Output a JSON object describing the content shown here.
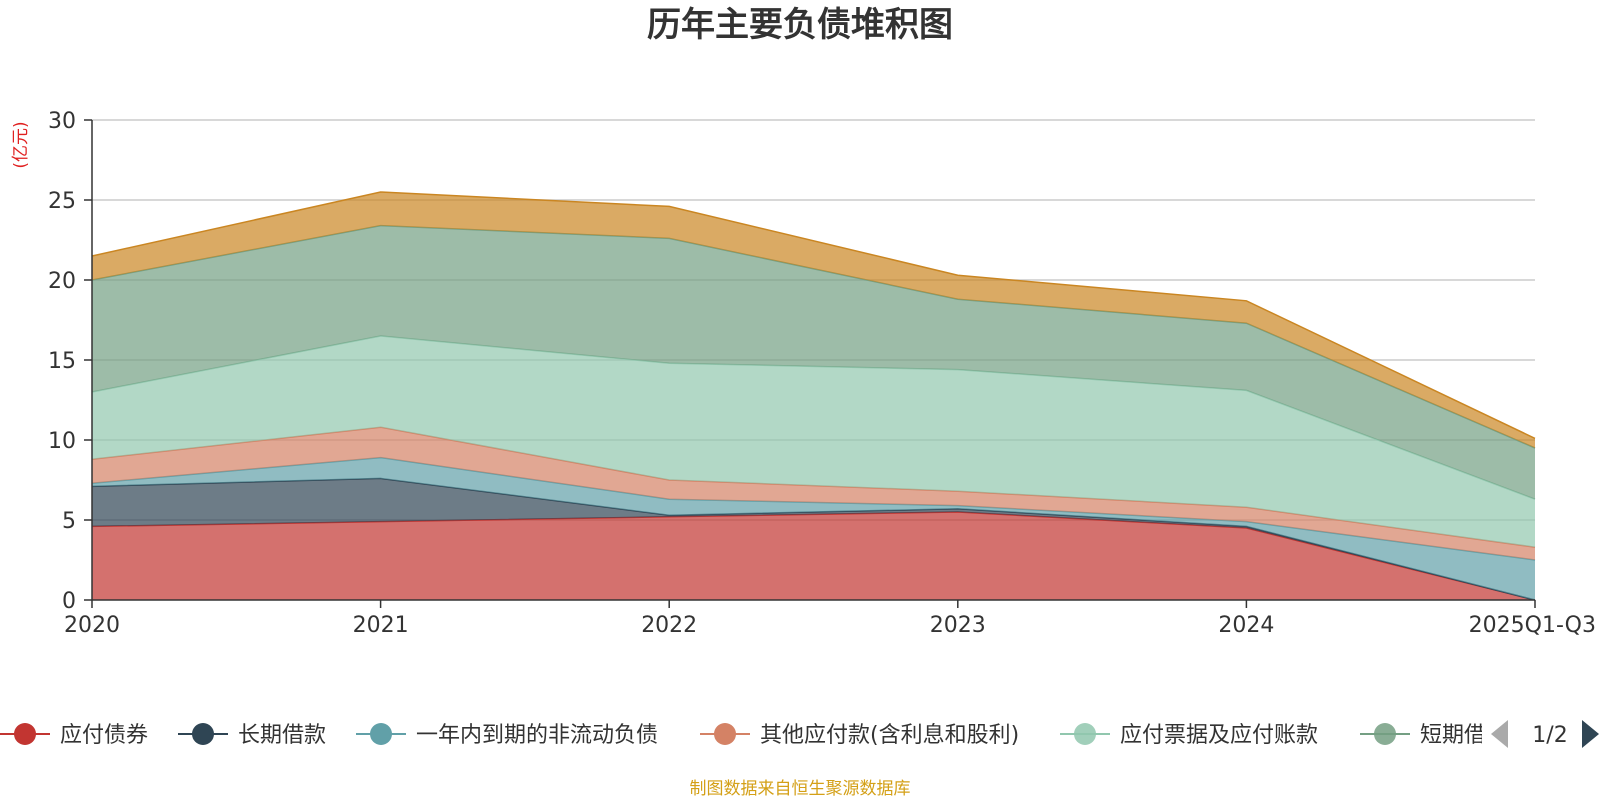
{
  "chart_data": {
    "type": "area",
    "stacked": true,
    "title": "历年主要负债堆积图",
    "ylabel": "(亿元)",
    "xlabel": "",
    "categories": [
      "2020",
      "2021",
      "2022",
      "2023",
      "2024",
      "2025Q1-Q3"
    ],
    "ylim": [
      0,
      30
    ],
    "yticks": [
      0,
      5,
      10,
      15,
      20,
      25,
      30
    ],
    "grid": true,
    "series": [
      {
        "name": "应付债券",
        "color": "#c23531",
        "values": [
          4.6,
          4.9,
          5.2,
          5.5,
          4.5,
          0.0
        ]
      },
      {
        "name": "长期借款",
        "color": "#2f4554",
        "values": [
          2.5,
          2.7,
          0.1,
          0.2,
          0.1,
          0.0
        ]
      },
      {
        "name": "一年内到期的非流动负债",
        "color": "#61a0a8",
        "values": [
          0.2,
          1.3,
          1.0,
          0.2,
          0.3,
          2.5
        ]
      },
      {
        "name": "其他应付款(含利息和股利)",
        "color": "#d48265",
        "values": [
          1.5,
          1.9,
          1.2,
          0.9,
          0.9,
          0.8
        ]
      },
      {
        "name": "应付票据及应付账款",
        "color": "#91c7ae",
        "values": [
          4.2,
          5.7,
          7.3,
          7.6,
          7.3,
          3.0
        ]
      },
      {
        "name": "短期借款",
        "color": "#749f83",
        "values": [
          7.0,
          6.9,
          7.8,
          4.4,
          4.2,
          3.2
        ]
      },
      {
        "name": "",
        "color": "#ca8622",
        "values": [
          1.5,
          2.1,
          2.0,
          1.5,
          1.4,
          0.6
        ]
      }
    ],
    "legend": {
      "position": "bottom",
      "page": "1/2",
      "visible_count": 6
    }
  },
  "source_note": "制图数据来自恒生聚源数据库"
}
